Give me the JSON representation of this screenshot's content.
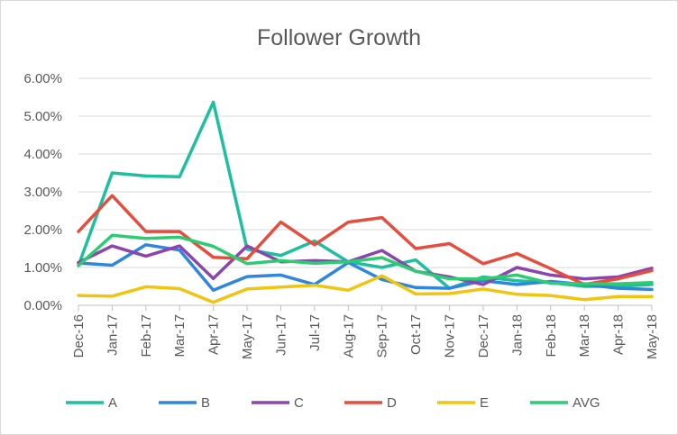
{
  "chart_data": {
    "type": "line",
    "title": "Follower Growth",
    "xlabel": "",
    "ylabel": "",
    "ylim": [
      0,
      0.06
    ],
    "yticks": [
      "0.00%",
      "1.00%",
      "2.00%",
      "3.00%",
      "4.00%",
      "5.00%",
      "6.00%"
    ],
    "grid": true,
    "legend_position": "bottom",
    "categories": [
      "Dec-16",
      "Jan-17",
      "Feb-17",
      "Mar-17",
      "Apr-17",
      "May-17",
      "Jun-17",
      "Jul-17",
      "Aug-17",
      "Sep-17",
      "Oct-17",
      "Nov-17",
      "Dec-17",
      "Jan-18",
      "Feb-18",
      "Mar-18",
      "Apr-18",
      "May-18"
    ],
    "series": [
      {
        "name": "A",
        "color": "#1dbf9f",
        "values": [
          0.0105,
          0.035,
          0.0342,
          0.034,
          0.0537,
          0.0148,
          0.0132,
          0.017,
          0.0115,
          0.01,
          0.012,
          0.0045,
          0.0075,
          0.0065,
          0.006,
          0.005,
          0.005,
          0.0055
        ]
      },
      {
        "name": "B",
        "color": "#2e86de",
        "values": [
          0.0112,
          0.0106,
          0.016,
          0.0146,
          0.004,
          0.0076,
          0.008,
          0.0055,
          0.0113,
          0.0068,
          0.0047,
          0.0045,
          0.0065,
          0.0055,
          0.0063,
          0.0055,
          0.0045,
          0.0042
        ]
      },
      {
        "name": "C",
        "color": "#8e44ad",
        "values": [
          0.0113,
          0.0157,
          0.013,
          0.0157,
          0.0071,
          0.0157,
          0.0115,
          0.0118,
          0.0115,
          0.0145,
          0.009,
          0.0075,
          0.0055,
          0.01,
          0.008,
          0.007,
          0.0075,
          0.0098
        ]
      },
      {
        "name": "D",
        "color": "#e74c3c",
        "values": [
          0.0195,
          0.029,
          0.0195,
          0.0195,
          0.0127,
          0.0123,
          0.022,
          0.016,
          0.022,
          0.0232,
          0.015,
          0.0163,
          0.011,
          0.0137,
          0.0097,
          0.0055,
          0.007,
          0.0092
        ]
      },
      {
        "name": "E",
        "color": "#f1c40f",
        "values": [
          0.0026,
          0.0024,
          0.0049,
          0.0044,
          0.0008,
          0.0043,
          0.0048,
          0.0053,
          0.004,
          0.0078,
          0.003,
          0.0031,
          0.0043,
          0.0029,
          0.0026,
          0.0015,
          0.0023,
          0.0023
        ]
      },
      {
        "name": "AVG",
        "color": "#2ecc71",
        "values": [
          0.0105,
          0.0185,
          0.0177,
          0.018,
          0.0156,
          0.011,
          0.0118,
          0.0111,
          0.0115,
          0.0126,
          0.009,
          0.007,
          0.007,
          0.008,
          0.0058,
          0.0057,
          0.0057,
          0.006
        ]
      }
    ]
  }
}
